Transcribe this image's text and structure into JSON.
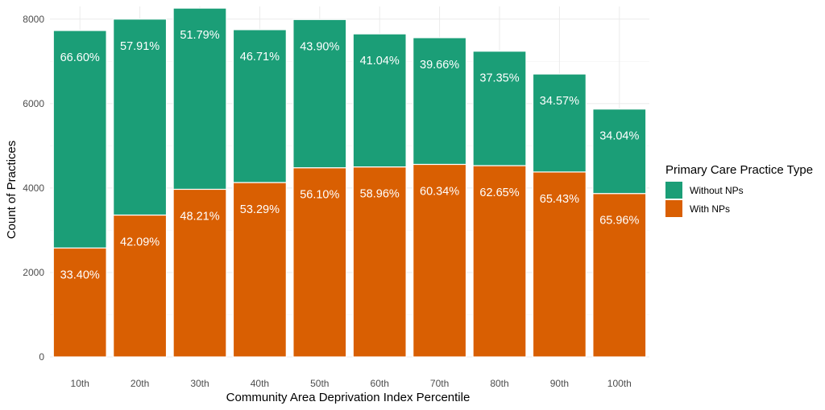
{
  "chart_data": {
    "type": "bar",
    "stacked": true,
    "title": "",
    "xlabel": "Community Area Deprivation Index Percentile",
    "ylabel": "Count of Practices",
    "ylim": [
      0,
      8300
    ],
    "yticks": [
      0,
      2000,
      4000,
      6000,
      8000
    ],
    "grid": true,
    "legend_position": "right",
    "legend_title": "Primary Care Practice Type",
    "categories": [
      "10th",
      "20th",
      "30th",
      "40th",
      "50th",
      "60th",
      "70th",
      "80th",
      "90th",
      "100th"
    ],
    "series": [
      {
        "name": "With NPs",
        "color": "#D95F02",
        "values": [
          2580,
          3360,
          3970,
          4130,
          4480,
          4500,
          4560,
          4530,
          4380,
          3870
        ],
        "labels": [
          "33.40%",
          "42.09%",
          "48.21%",
          "53.29%",
          "56.10%",
          "58.96%",
          "60.34%",
          "62.65%",
          "65.43%",
          "65.96%"
        ]
      },
      {
        "name": "Without NPs",
        "color": "#1B9E77",
        "values": [
          5150,
          4640,
          4290,
          3620,
          3510,
          3150,
          3000,
          2710,
          2320,
          2000
        ],
        "labels": [
          "66.60%",
          "57.91%",
          "51.79%",
          "46.71%",
          "43.90%",
          "41.04%",
          "39.66%",
          "37.35%",
          "34.57%",
          "34.04%"
        ]
      }
    ],
    "legend_order": [
      "Without NPs",
      "With NPs"
    ]
  }
}
